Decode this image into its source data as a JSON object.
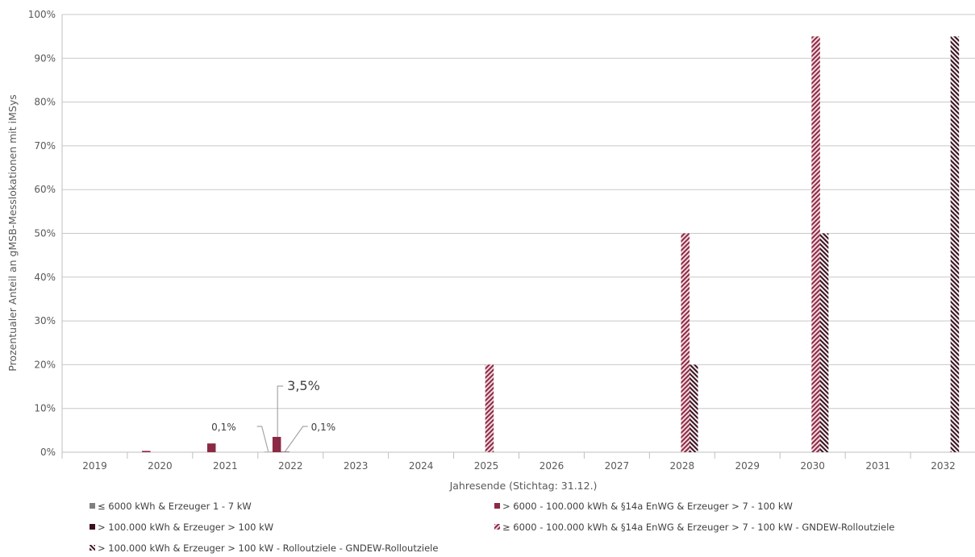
{
  "chart_data": {
    "type": "bar",
    "xlabel": "Jahresende (Stichtag: 31.12.)",
    "ylabel": "Prozentualer Anteil an gMSB-Messlokationen mit iMSys",
    "ylim": [
      0,
      100
    ],
    "y_ticks": [
      "0%",
      "10%",
      "20%",
      "30%",
      "40%",
      "50%",
      "60%",
      "70%",
      "80%",
      "90%",
      "100%"
    ],
    "categories": [
      "2019",
      "2020",
      "2021",
      "2022",
      "2023",
      "2024",
      "2025",
      "2026",
      "2027",
      "2028",
      "2029",
      "2030",
      "2031",
      "2032"
    ],
    "grid": true,
    "legend_position": "bottom",
    "series": [
      {
        "name": "≤ 6000 kWh & Erzeuger 1 - 7 kW",
        "color": "#808080",
        "pattern": "solid",
        "values": [
          0,
          0,
          0,
          0.1,
          null,
          null,
          null,
          null,
          null,
          null,
          null,
          null,
          null,
          null
        ]
      },
      {
        "name": "> 6000 - 100.000 kWh & §14a EnWG & Erzeuger > 7 - 100 kW",
        "color": "#8b2a45",
        "pattern": "solid",
        "values": [
          0,
          0.3,
          2.0,
          3.5,
          null,
          null,
          null,
          null,
          null,
          null,
          null,
          null,
          null,
          null
        ]
      },
      {
        "name": "> 100.000 kWh & Erzeuger > 100 kW",
        "color": "#3d1020",
        "pattern": "solid",
        "values": [
          0,
          0,
          0,
          0.1,
          null,
          null,
          null,
          null,
          null,
          null,
          null,
          null,
          null,
          null
        ]
      },
      {
        "name": "≥ 6000 - 100.000 kWh & §14a EnWG & Erzeuger > 7 - 100 kW - GNDEW-Rolloutziele",
        "color": "#8b2a45",
        "pattern": "hatch-light",
        "values": [
          null,
          null,
          null,
          null,
          null,
          null,
          20,
          null,
          null,
          50,
          null,
          95,
          null,
          null
        ]
      },
      {
        "name": "> 100.000 kWh & Erzeuger > 100 kW - Rolloutziele  - GNDEW-Rolloutziele",
        "color": "#3d1020",
        "pattern": "hatch-dark",
        "values": [
          null,
          null,
          null,
          null,
          null,
          null,
          null,
          null,
          null,
          20,
          null,
          50,
          null,
          95
        ]
      }
    ],
    "annotations": [
      {
        "text": "0,1%",
        "series": 0,
        "category": "2022"
      },
      {
        "text": "3,5%",
        "series": 1,
        "category": "2022"
      },
      {
        "text": "0,1%",
        "series": 2,
        "category": "2022"
      }
    ]
  }
}
